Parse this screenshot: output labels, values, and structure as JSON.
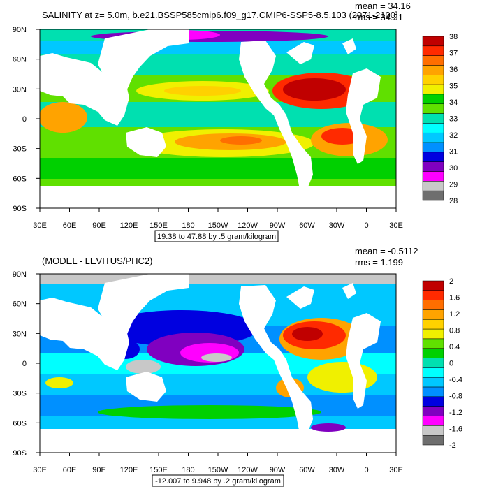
{
  "top_panel": {
    "title": "SALINITY at z=   5.0m, b.e21.BSSP585cmip6.f09_g17.CMIP6-SSP5-8.5.103 (2071-2100]",
    "mean": "mean = 34.16",
    "rms": "rms = 34.21",
    "range_label": "19.38 to 47.88 by .5 gram/kilogram",
    "colorbar_labels": [
      "38",
      "37",
      "36",
      "35",
      "34",
      "33",
      "32",
      "31",
      "30",
      "29",
      "28"
    ],
    "colorbar_colors": [
      "#c00000",
      "#ff2a00",
      "#ff6e00",
      "#ffa300",
      "#ffd100",
      "#f0f000",
      "#00d000",
      "#60e000",
      "#00e0b0",
      "#00ffff",
      "#00c8ff",
      "#0090ff",
      "#0000e0",
      "#8000c0",
      "#ff00ff",
      "#c8c8c8",
      "#6e6e6e"
    ]
  },
  "bottom_panel": {
    "title": "(MODEL - LEVITUS/PHC2)",
    "mean": "mean = -0.5112",
    "rms": "rms = 1.199",
    "range_label": "-12.007 to 9.948 by .2 gram/kilogram",
    "colorbar_labels": [
      "2",
      "1.6",
      "1.2",
      "0.8",
      "0.4",
      "0",
      "-0.4",
      "-0.8",
      "-1.2",
      "-1.6",
      "-2"
    ],
    "colorbar_colors": [
      "#c00000",
      "#ff2a00",
      "#ff6e00",
      "#ffa300",
      "#ffd100",
      "#f0f000",
      "#60e000",
      "#00d000",
      "#00e0b0",
      "#00ffff",
      "#00c8ff",
      "#0090ff",
      "#0000e0",
      "#8000c0",
      "#ff00ff",
      "#c8c8c8",
      "#6e6e6e"
    ]
  },
  "axes": {
    "lat_labels": [
      "90N",
      "60N",
      "30N",
      "0",
      "30S",
      "60S",
      "90S"
    ],
    "lon_labels": [
      "30E",
      "60E",
      "90E",
      "120E",
      "150E",
      "180",
      "150W",
      "120W",
      "90W",
      "60W",
      "30W",
      "0",
      "30E"
    ]
  }
}
